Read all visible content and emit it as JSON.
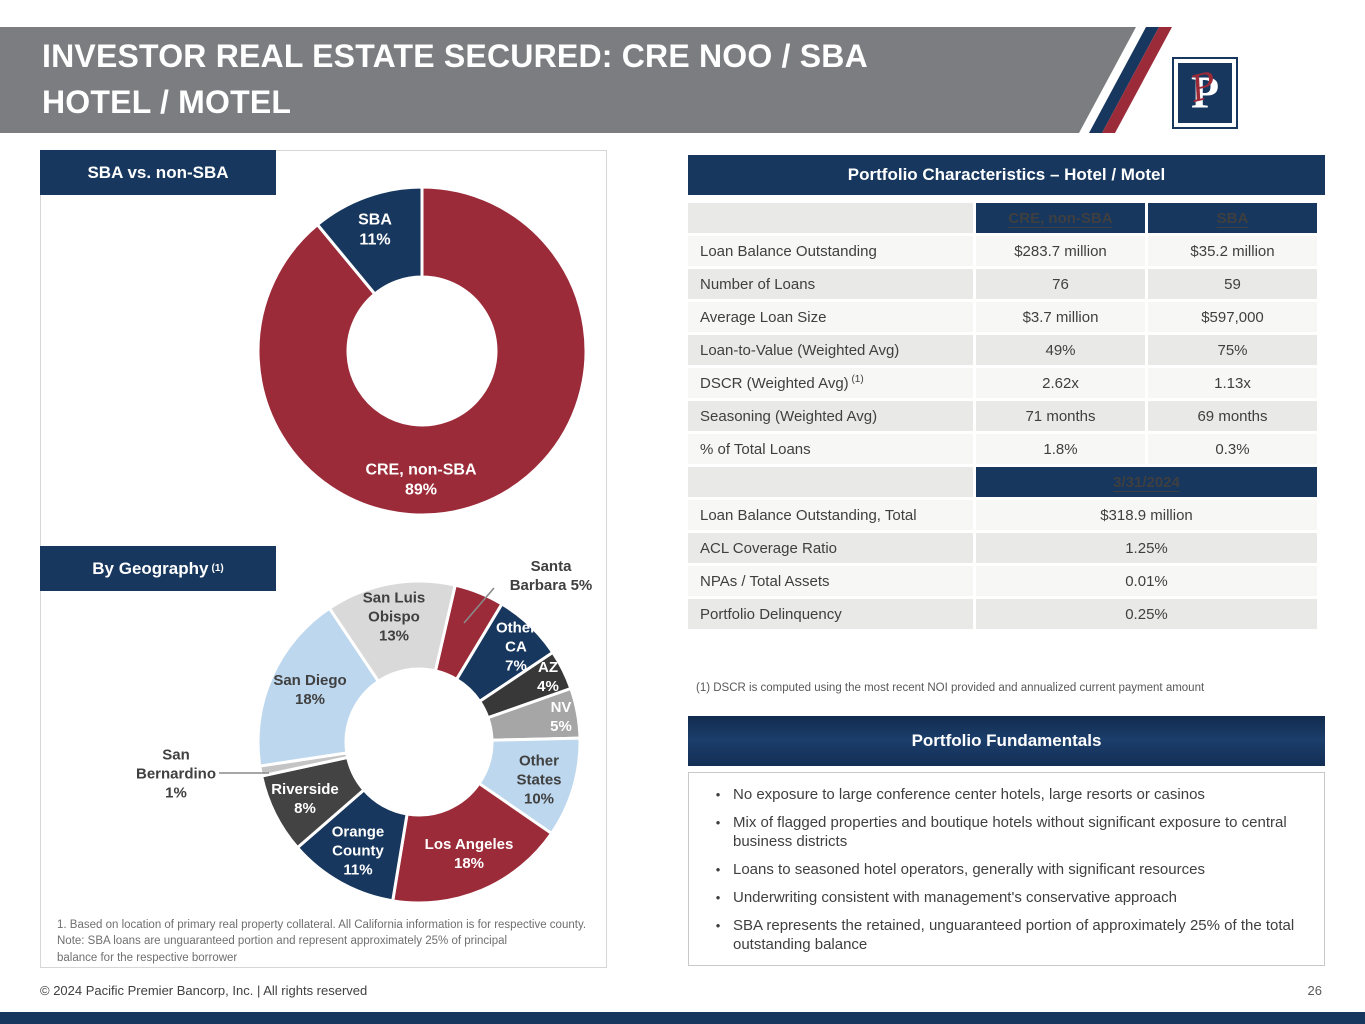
{
  "page": {
    "title_line1": "INVESTOR REAL ESTATE SECURED: CRE NOO / SBA",
    "title_line2": "HOTEL / MOTEL",
    "footer_left": "© 2024 Pacific Premier Bancorp, Inc. | All rights reserved",
    "page_number": "26",
    "logo_letter": "P"
  },
  "colors": {
    "navy": "#17375E",
    "dark_red": "#9C2B39",
    "band_gray": "#7C7D81",
    "light_blue": "#BDD7EE",
    "charcoal": "#3A3A3A",
    "mid_gray": "#A6A6A6",
    "light_gray": "#D9D9D9",
    "row_light": "#F7F7F5",
    "row_dark": "#E9E9E7"
  },
  "left_panel": {
    "chart1_header": "SBA vs. non-SBA",
    "chart2_header": "By Geography",
    "chart2_header_sup": "(1)",
    "footnote_lines": [
      "1. Based on location of primary real property collateral. All California information is for respective county.",
      "Note: SBA loans are unguaranteed portion and represent approximately 25% of principal",
      "balance for the respective borrower"
    ]
  },
  "table": {
    "title": "Portfolio Characteristics – Hotel / Motel",
    "col_headers": [
      "CRE, non-SBA",
      "SBA"
    ],
    "rows": [
      {
        "label": "Loan Balance Outstanding",
        "values": [
          "$283.7 million",
          "$35.2 million"
        ]
      },
      {
        "label": "Number of Loans",
        "values": [
          "76",
          "59"
        ]
      },
      {
        "label": "Average Loan Size",
        "values": [
          "$3.7 million",
          "$597,000"
        ]
      },
      {
        "label": "Loan-to-Value (Weighted Avg)",
        "values": [
          "49%",
          "75%"
        ]
      },
      {
        "label": "DSCR (Weighted Avg)",
        "label_sup": "(1)",
        "values": [
          "2.62x",
          "1.13x"
        ]
      },
      {
        "label": "Seasoning (Weighted Avg)",
        "values": [
          "71 months",
          "69 months"
        ]
      },
      {
        "label": "% of Total Loans",
        "values": [
          "1.8%",
          "0.3%"
        ]
      }
    ],
    "date_header": "3/31/2024",
    "total_rows": [
      {
        "label": "Loan Balance Outstanding, Total",
        "value": "$318.9 million"
      },
      {
        "label": "ACL Coverage Ratio",
        "value": "1.25%"
      },
      {
        "label": "NPAs / Total Assets",
        "value": "0.01%"
      },
      {
        "label": "Portfolio Delinquency",
        "value": "0.25%"
      }
    ],
    "footnote": "(1) DSCR is computed using the most recent NOI provided and annualized current payment amount"
  },
  "fundamentals": {
    "title": "Portfolio Fundamentals",
    "bullets": [
      "No exposure to large conference center hotels, large resorts or casinos",
      "Mix of flagged properties and boutique hotels without significant exposure to central business districts",
      "Loans to seasoned hotel operators, generally with significant resources",
      "Underwriting consistent with management's conservative approach",
      "SBA represents the retained, unguaranteed portion of approximately 25% of the total outstanding balance"
    ]
  },
  "chart_data": [
    {
      "type": "pie",
      "subtype": "donut",
      "title": "SBA vs. non-SBA",
      "center": [
        381,
        200
      ],
      "outer_r": 164,
      "inner_r": 74,
      "rotation": 0,
      "label_size": 16,
      "segments": [
        {
          "name": "CRE, non-SBA",
          "value": 89,
          "color": "#9C2B39",
          "label_lines": [
            "CRE, non-SBA",
            "89%"
          ],
          "label_color": "#FFFFFF",
          "label_at": [
            380,
            328
          ]
        },
        {
          "name": "SBA",
          "value": 11,
          "color": "#17375E",
          "label_lines": [
            "SBA",
            "11%"
          ],
          "label_color": "#FFFFFF",
          "label_at": [
            334,
            78
          ]
        }
      ]
    },
    {
      "type": "pie",
      "subtype": "donut",
      "title": "By Geography (1)",
      "center": [
        378,
        591
      ],
      "outer_r": 161,
      "inner_r": 73,
      "rotation": 13,
      "label_size": 15,
      "segments": [
        {
          "name": "Santa Barbara",
          "value": 5,
          "color": "#9C2B39",
          "label_lines": [
            "Santa",
            "Barbara 5%"
          ],
          "label_color": "#404040",
          "label_at": [
            510,
            424
          ],
          "leader": [
            [
              453,
              437
            ],
            [
              423,
              472
            ]
          ]
        },
        {
          "name": "Other CA",
          "value": 7,
          "color": "#17375E",
          "label_lines": [
            "Other",
            "CA",
            "7%"
          ],
          "label_color": "#FFFFFF",
          "label_at": [
            475,
            495
          ]
        },
        {
          "name": "AZ",
          "value": 4,
          "color": "#383838",
          "label_lines": [
            "AZ",
            "4%"
          ],
          "label_color": "#FFFFFF",
          "label_at": [
            507,
            525
          ]
        },
        {
          "name": "NV",
          "value": 5,
          "color": "#A6A6A6",
          "label_lines": [
            "NV",
            "5%"
          ],
          "label_color": "#FFFFFF",
          "label_at": [
            520,
            565
          ]
        },
        {
          "name": "Other States",
          "value": 10,
          "color": "#BDD7EE",
          "label_lines": [
            "Other",
            "States",
            "10%"
          ],
          "label_color": "#404040",
          "label_at": [
            498,
            628
          ]
        },
        {
          "name": "Los Angeles",
          "value": 18,
          "color": "#9C2B39",
          "label_lines": [
            "Los Angeles",
            "18%"
          ],
          "label_color": "#FFFFFF",
          "label_at": [
            428,
            702
          ]
        },
        {
          "name": "Orange County",
          "value": 11,
          "color": "#17375E",
          "label_lines": [
            "Orange",
            "County",
            "11%"
          ],
          "label_color": "#FFFFFF",
          "label_at": [
            317,
            699
          ]
        },
        {
          "name": "Riverside",
          "value": 8,
          "color": "#434343",
          "label_lines": [
            "Riverside",
            "8%"
          ],
          "label_color": "#FFFFFF",
          "label_at": [
            264,
            647
          ]
        },
        {
          "name": "San Bernardino",
          "value": 1,
          "color": "#C4C4C4",
          "label_lines": [
            "San",
            "Bernardino",
            "1%"
          ],
          "label_color": "#404040",
          "label_at": [
            135,
            622
          ],
          "leader": [
            [
              178,
              622
            ],
            [
              228,
              622
            ]
          ]
        },
        {
          "name": "San Diego",
          "value": 18,
          "color": "#BDD7EE",
          "label_lines": [
            "San Diego",
            "18%"
          ],
          "label_color": "#404040",
          "label_at": [
            269,
            538
          ]
        },
        {
          "name": "San Luis Obispo",
          "value": 13,
          "color": "#D9D9D9",
          "label_lines": [
            "San Luis",
            "Obispo",
            "13%"
          ],
          "label_color": "#404040",
          "label_at": [
            353,
            465
          ]
        }
      ]
    }
  ]
}
